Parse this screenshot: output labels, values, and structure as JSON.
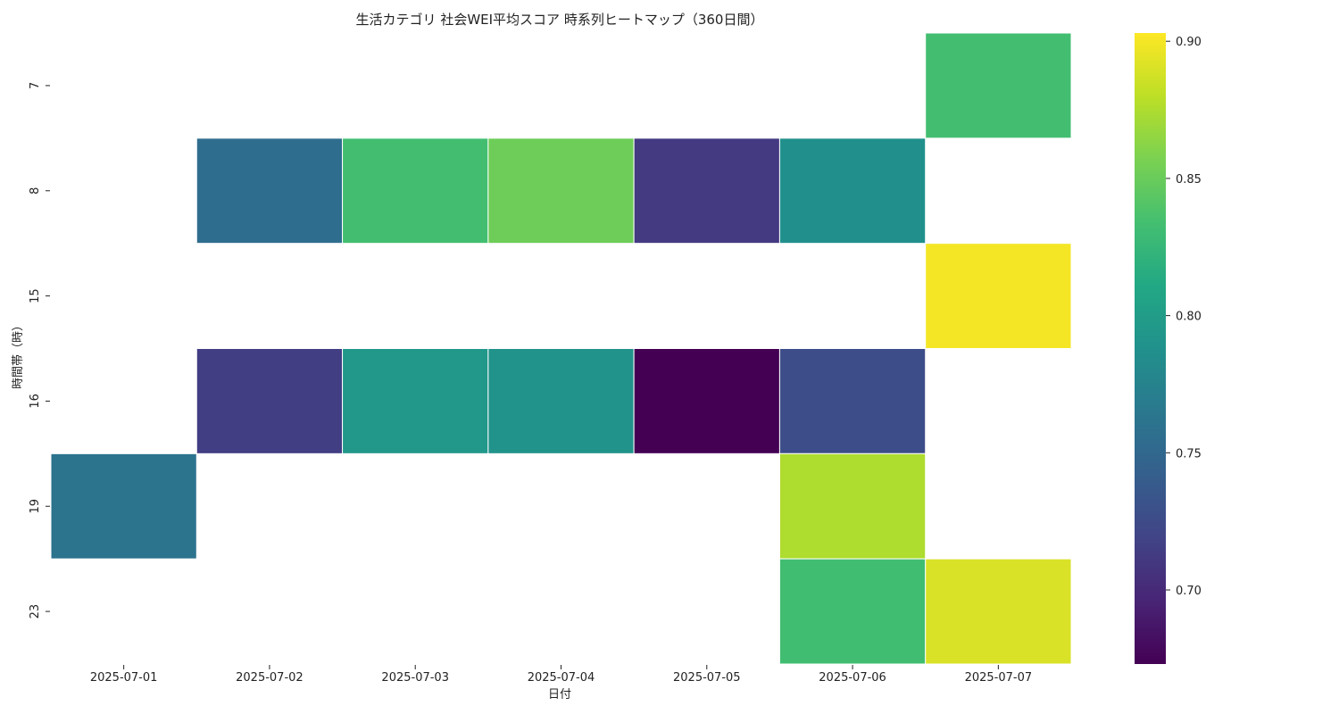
{
  "chart_data": {
    "type": "heatmap",
    "title": "生活カテゴリ 社会WEI平均スコア 時系列ヒートマップ（360日間）",
    "xlabel": "日付",
    "ylabel": "時間帯（時）",
    "x_categories": [
      "2025-07-01",
      "2025-07-02",
      "2025-07-03",
      "2025-07-04",
      "2025-07-05",
      "2025-07-06",
      "2025-07-07"
    ],
    "y_categories": [
      "7",
      "8",
      "15",
      "16",
      "19",
      "23"
    ],
    "values": [
      [
        null,
        null,
        null,
        null,
        null,
        null,
        0.833
      ],
      [
        null,
        0.755,
        0.833,
        0.852,
        0.712,
        0.787,
        null
      ],
      [
        null,
        null,
        null,
        null,
        null,
        null,
        0.9
      ],
      [
        null,
        0.715,
        0.795,
        0.79,
        0.673,
        0.727,
        null
      ],
      [
        0.76,
        null,
        null,
        null,
        null,
        0.875,
        null
      ],
      [
        null,
        null,
        null,
        null,
        null,
        0.832,
        0.89
      ]
    ],
    "colormap": "viridis",
    "colorbar": {
      "vmin": 0.673,
      "vmax": 0.903,
      "ticks": [
        0.7,
        0.75,
        0.8,
        0.85,
        0.9
      ],
      "tick_labels": [
        "0.70",
        "0.75",
        "0.80",
        "0.85",
        "0.90"
      ]
    },
    "grid": false,
    "legend": "colorbar-right"
  }
}
